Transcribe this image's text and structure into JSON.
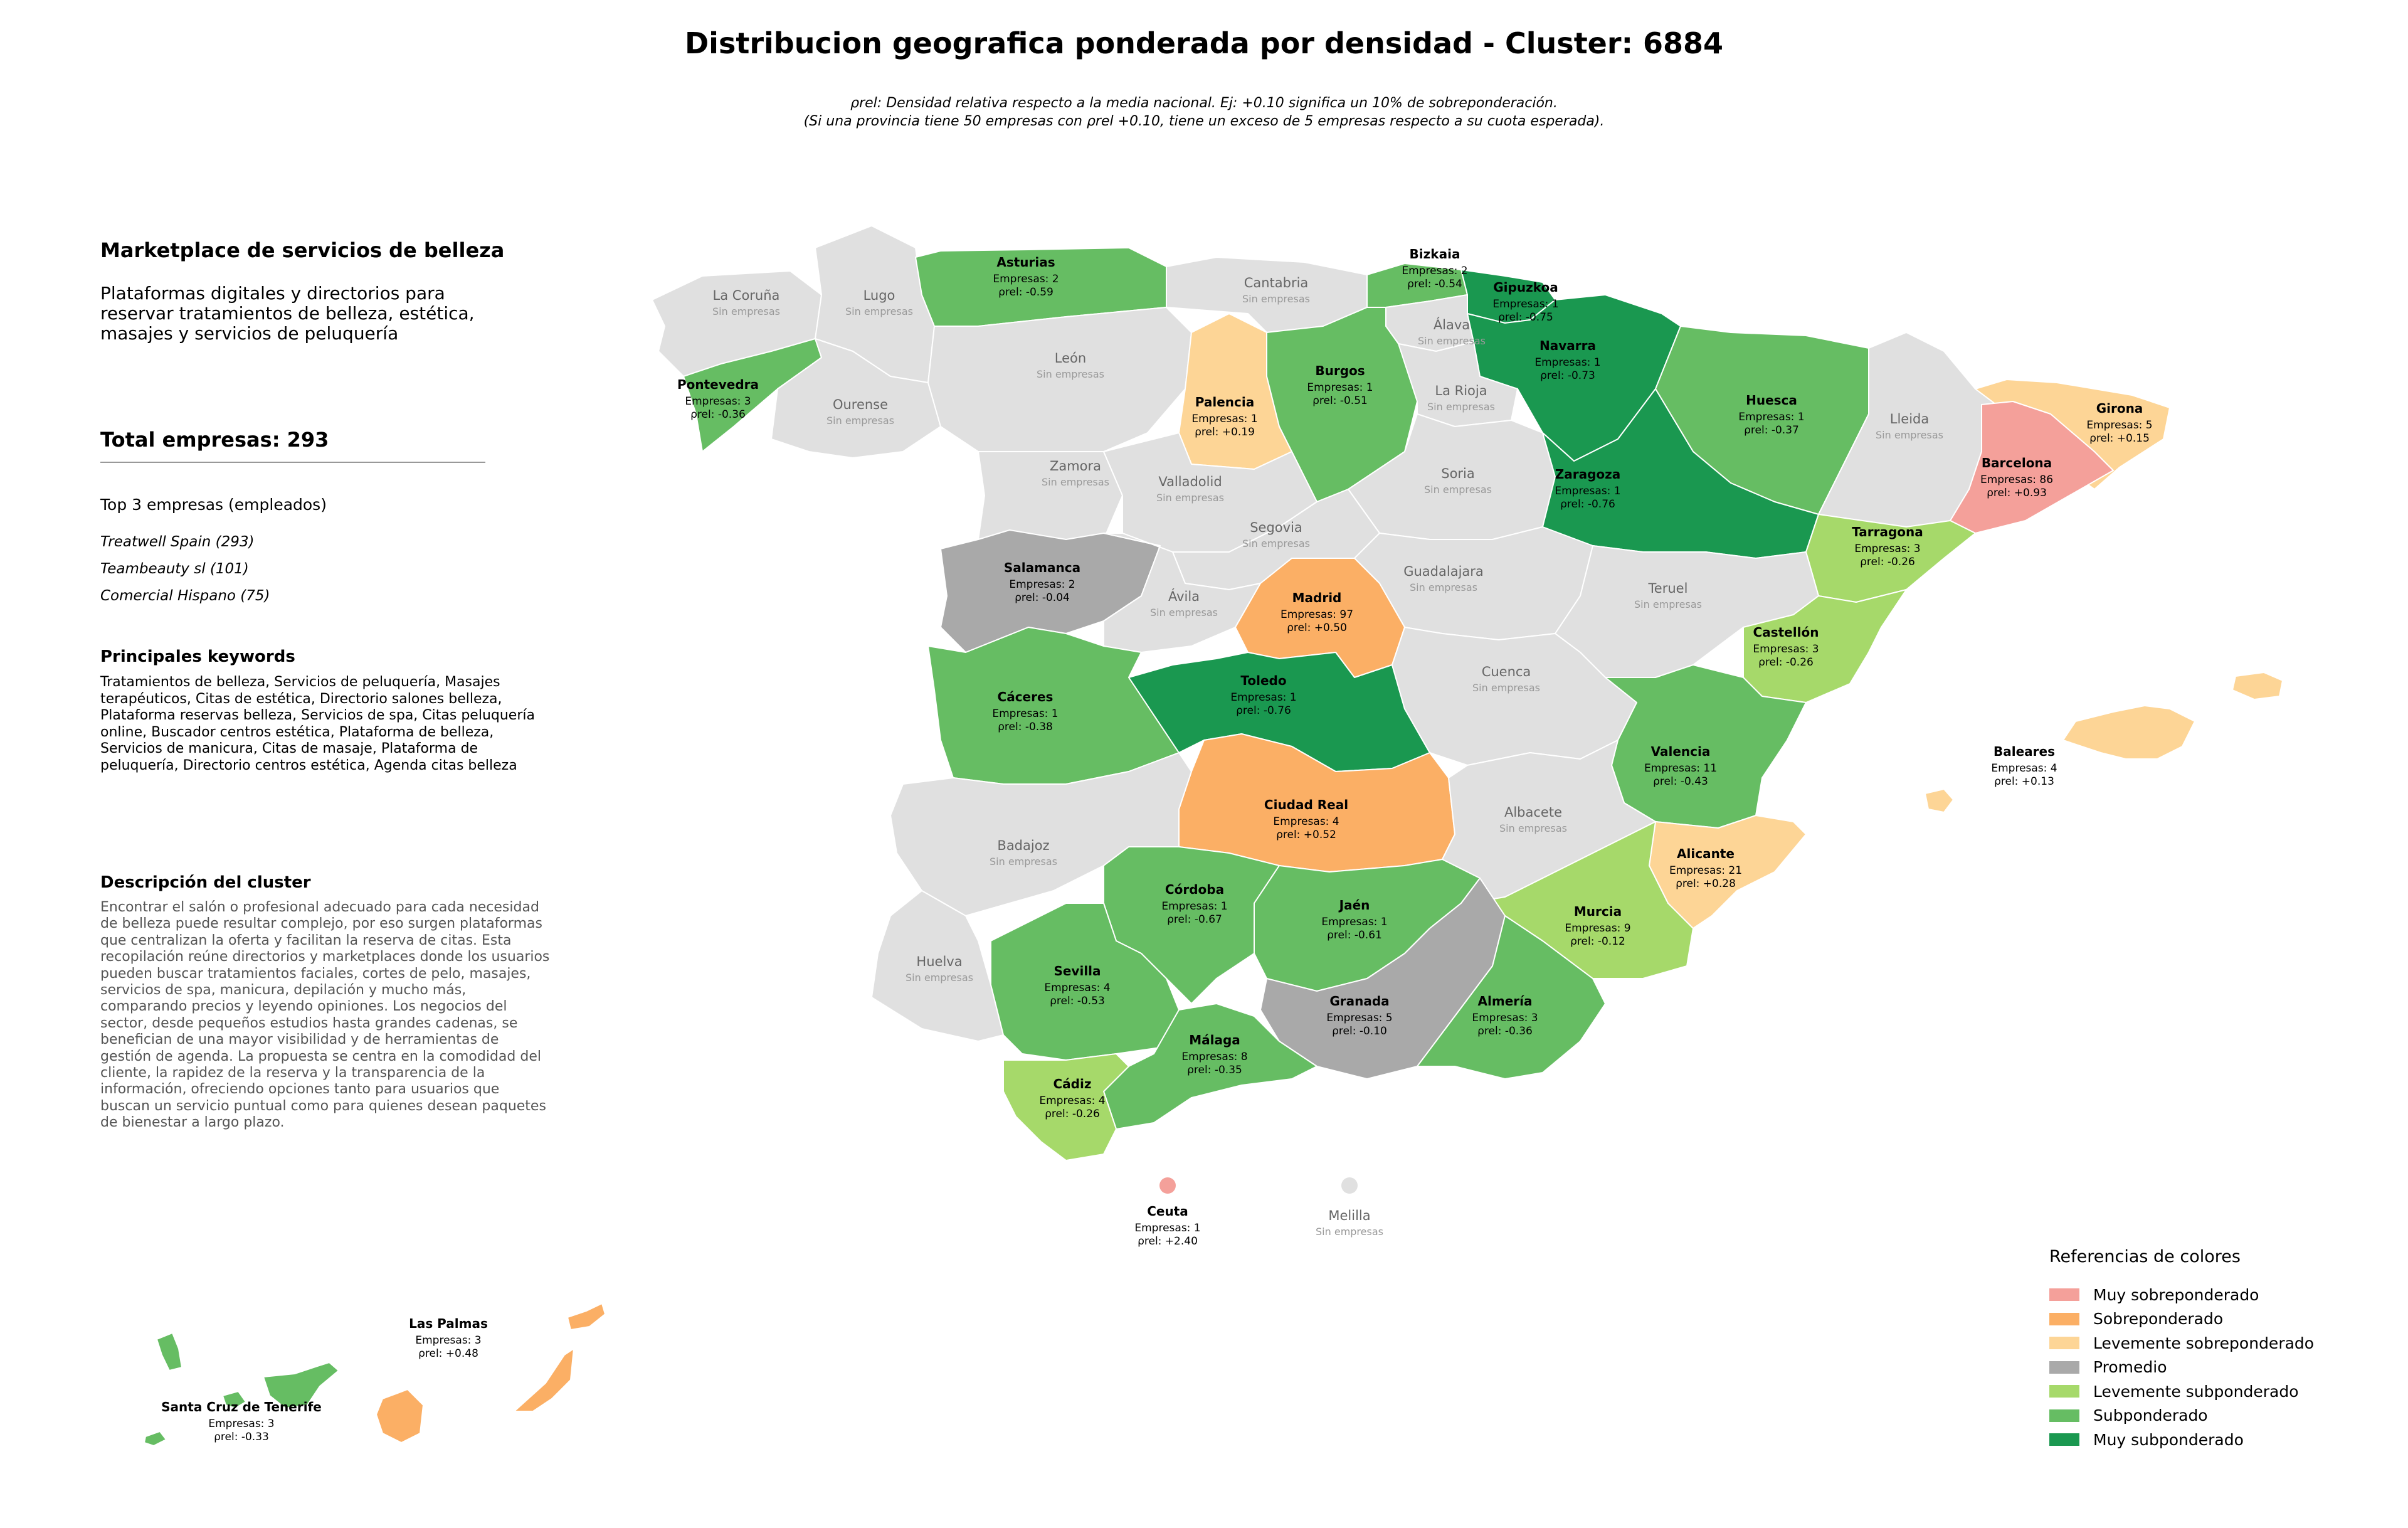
{
  "title": "Distribucion geografica ponderada por densidad - Cluster: 6884",
  "subtitle": {
    "line1": "ρrel: Densidad relativa respecto a la media nacional. Ej: +0.10 significa un 10% de sobreponderación.",
    "line2": "(Si una provincia tiene 50 empresas con ρrel +0.10, tiene un exceso de 5 empresas respecto a su cuota esperada)."
  },
  "sidebar": {
    "cluster_name": "Marketplace de servicios de belleza",
    "cluster_description": "Plataformas digitales y directorios para reservar tratamientos de belleza, estética, masajes y servicios de peluquería",
    "total_label": "Total empresas: 293",
    "top3_title": "Top 3 empresas (empleados)",
    "top_companies": [
      "Treatwell Spain (293)",
      "Teambeauty sl (101)",
      "Comercial Hispano (75)"
    ],
    "keywords_title": "Principales keywords",
    "keywords_text": "Tratamientos de belleza, Servicios de peluquería, Masajes terapéuticos, Citas de estética, Directorio salones belleza, Plataforma reservas belleza, Servicios de spa, Citas peluquería online, Buscador centros estética, Plataforma de belleza, Servicios de manicura, Citas de masaje, Plataforma de peluquería, Directorio centros estética, Agenda citas belleza",
    "description_title": "Descripción del cluster",
    "description_text": "Encontrar el salón o profesional adecuado para cada necesidad de belleza puede resultar complejo, por eso surgen plataformas que centralizan la oferta y facilitan la reserva de citas. Esta recopilación reúne directorios y marketplaces donde los usuarios pueden buscar tratamientos faciales, cortes de pelo, masajes, servicios de spa, manicura, depilación y mucho más, comparando precios y leyendo opiniones. Los negocios del sector, desde pequeños estudios hasta grandes cadenas, se benefician de una mayor visibilidad y de herramientas de gestión de agenda. La propuesta se centra en la comodidad del cliente, la rapidez de la reserva y la transparencia de la información, ofreciendo opciones tanto para usuarios que buscan un servicio puntual como para quienes desean paquetes de bienestar a largo plazo."
  },
  "map_labels": {
    "empresas_prefix": "Empresas: ",
    "rho_prefix": "ρrel: ",
    "no_companies": "Sin empresas"
  },
  "colors": {
    "muy_sobreponderado": "#f4a09a",
    "sobreponderado": "#fbaf65",
    "levemente_sobreponderado": "#fdd596",
    "promedio": "#a9a9a9",
    "levemente_subponderado": "#a6d96a",
    "subponderado": "#66bd63",
    "muy_subponderado": "#1a9850",
    "sin_empresas": "#e0e0e0"
  },
  "provinces": [
    {
      "name": "La Coruña",
      "cat": "sin_empresas"
    },
    {
      "name": "Lugo",
      "cat": "sin_empresas"
    },
    {
      "name": "Asturias",
      "cat": "subponderado",
      "empresas": 2,
      "rho": "-0.59"
    },
    {
      "name": "Cantabria",
      "cat": "sin_empresas"
    },
    {
      "name": "Bizkaia",
      "cat": "subponderado",
      "empresas": 2,
      "rho": "-0.54"
    },
    {
      "name": "Gipuzkoa",
      "cat": "muy_subponderado",
      "empresas": 1,
      "rho": "-0.75"
    },
    {
      "name": "Álava",
      "cat": "sin_empresas"
    },
    {
      "name": "Navarra",
      "cat": "muy_subponderado",
      "empresas": 1,
      "rho": "-0.73"
    },
    {
      "name": "Pontevedra",
      "cat": "subponderado",
      "empresas": 3,
      "rho": "-0.36"
    },
    {
      "name": "Ourense",
      "cat": "sin_empresas"
    },
    {
      "name": "León",
      "cat": "sin_empresas"
    },
    {
      "name": "Palencia",
      "cat": "levemente_sobreponderado",
      "empresas": 1,
      "rho": "+0.19"
    },
    {
      "name": "Burgos",
      "cat": "subponderado",
      "empresas": 1,
      "rho": "-0.51"
    },
    {
      "name": "La Rioja",
      "cat": "sin_empresas"
    },
    {
      "name": "Huesca",
      "cat": "subponderado",
      "empresas": 1,
      "rho": "-0.37"
    },
    {
      "name": "Lleida",
      "cat": "sin_empresas"
    },
    {
      "name": "Girona",
      "cat": "levemente_sobreponderado",
      "empresas": 5,
      "rho": "+0.15"
    },
    {
      "name": "Barcelona",
      "cat": "muy_sobreponderado",
      "empresas": 86,
      "rho": "+0.93"
    },
    {
      "name": "Zamora",
      "cat": "sin_empresas"
    },
    {
      "name": "Valladolid",
      "cat": "sin_empresas"
    },
    {
      "name": "Soria",
      "cat": "sin_empresas"
    },
    {
      "name": "Zaragoza",
      "cat": "muy_subponderado",
      "empresas": 1,
      "rho": "-0.76"
    },
    {
      "name": "Tarragona",
      "cat": "levemente_subponderado",
      "empresas": 3,
      "rho": "-0.26"
    },
    {
      "name": "Salamanca",
      "cat": "promedio",
      "empresas": 2,
      "rho": "-0.04"
    },
    {
      "name": "Segovia",
      "cat": "sin_empresas"
    },
    {
      "name": "Ávila",
      "cat": "sin_empresas"
    },
    {
      "name": "Guadalajara",
      "cat": "sin_empresas"
    },
    {
      "name": "Teruel",
      "cat": "sin_empresas"
    },
    {
      "name": "Madrid",
      "cat": "sobreponderado",
      "empresas": 97,
      "rho": "+0.50"
    },
    {
      "name": "Castellón",
      "cat": "levemente_subponderado",
      "empresas": 3,
      "rho": "-0.26"
    },
    {
      "name": "Cáceres",
      "cat": "subponderado",
      "empresas": 1,
      "rho": "-0.38"
    },
    {
      "name": "Toledo",
      "cat": "muy_subponderado",
      "empresas": 1,
      "rho": "-0.76"
    },
    {
      "name": "Cuenca",
      "cat": "sin_empresas"
    },
    {
      "name": "Valencia",
      "cat": "subponderado",
      "empresas": 11,
      "rho": "-0.43"
    },
    {
      "name": "Baleares",
      "cat": "levemente_sobreponderado",
      "empresas": 4,
      "rho": "+0.13"
    },
    {
      "name": "Ciudad Real",
      "cat": "sobreponderado",
      "empresas": 4,
      "rho": "+0.52"
    },
    {
      "name": "Albacete",
      "cat": "sin_empresas"
    },
    {
      "name": "Badajoz",
      "cat": "sin_empresas"
    },
    {
      "name": "Alicante",
      "cat": "levemente_sobreponderado",
      "empresas": 21,
      "rho": "+0.28"
    },
    {
      "name": "Córdoba",
      "cat": "subponderado",
      "empresas": 1,
      "rho": "-0.67"
    },
    {
      "name": "Jaén",
      "cat": "subponderado",
      "empresas": 1,
      "rho": "-0.61"
    },
    {
      "name": "Murcia",
      "cat": "levemente_subponderado",
      "empresas": 9,
      "rho": "-0.12"
    },
    {
      "name": "Huelva",
      "cat": "sin_empresas"
    },
    {
      "name": "Sevilla",
      "cat": "subponderado",
      "empresas": 4,
      "rho": "-0.53"
    },
    {
      "name": "Granada",
      "cat": "promedio",
      "empresas": 5,
      "rho": "-0.10"
    },
    {
      "name": "Almería",
      "cat": "subponderado",
      "empresas": 3,
      "rho": "-0.36"
    },
    {
      "name": "Málaga",
      "cat": "subponderado",
      "empresas": 8,
      "rho": "-0.35"
    },
    {
      "name": "Cádiz",
      "cat": "levemente_subponderado",
      "empresas": 4,
      "rho": "-0.26"
    },
    {
      "name": "Ceuta",
      "cat": "muy_sobreponderado",
      "empresas": 1,
      "rho": "+2.40"
    },
    {
      "name": "Melilla",
      "cat": "sin_empresas"
    },
    {
      "name": "Las Palmas",
      "cat": "sobreponderado",
      "empresas": 3,
      "rho": "+0.48"
    },
    {
      "name": "Santa Cruz de Tenerife",
      "cat": "subponderado",
      "empresas": 3,
      "rho": "-0.33"
    }
  ],
  "legend": {
    "title": "Referencias de colores",
    "items": [
      {
        "label": "Muy sobreponderado",
        "color": "#f4a09a"
      },
      {
        "label": "Sobreponderado",
        "color": "#fbaf65"
      },
      {
        "label": "Levemente sobreponderado",
        "color": "#fdd596"
      },
      {
        "label": "Promedio",
        "color": "#a9a9a9"
      },
      {
        "label": "Levemente subponderado",
        "color": "#a6d96a"
      },
      {
        "label": "Subponderado",
        "color": "#66bd63"
      },
      {
        "label": "Muy subponderado",
        "color": "#1a9850"
      }
    ]
  }
}
